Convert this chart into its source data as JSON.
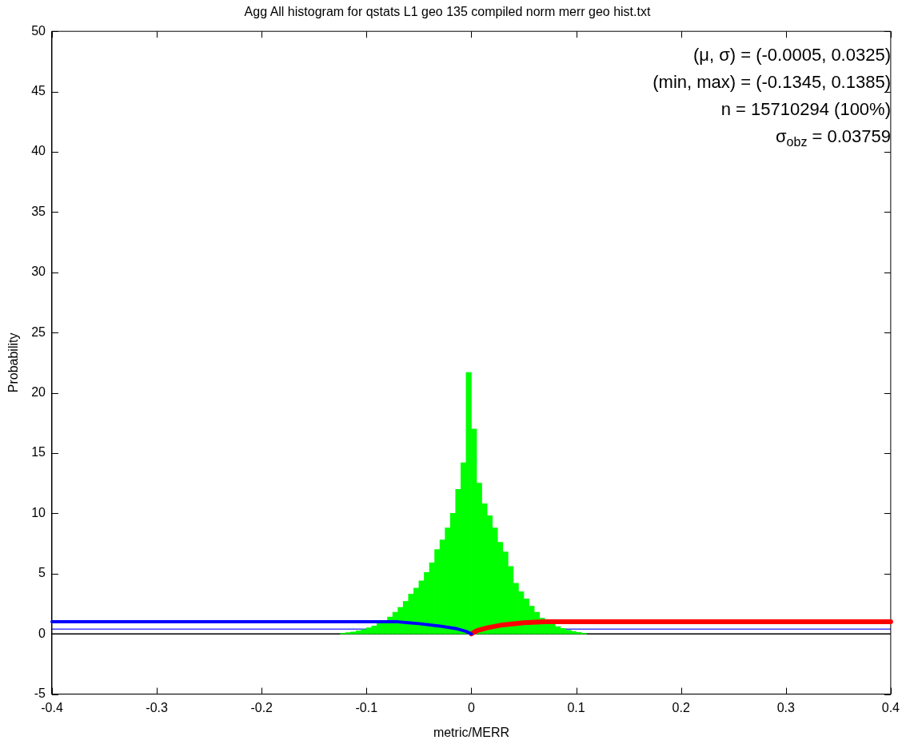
{
  "chart_data": {
    "type": "histogram",
    "title": "Agg All histogram for qstats L1 geo 135 compiled norm merr geo hist.txt",
    "xlabel": "metric/MERR",
    "ylabel": "Probability",
    "bins": [
      -0.125,
      -0.12,
      -0.115,
      -0.11,
      -0.105,
      -0.1,
      -0.095,
      -0.09,
      -0.085,
      -0.08,
      -0.075,
      -0.07,
      -0.065,
      -0.06,
      -0.055,
      -0.05,
      -0.045,
      -0.04,
      -0.035,
      -0.03,
      -0.025,
      -0.02,
      -0.015,
      -0.01,
      -0.005,
      0,
      0.005,
      0.01,
      0.015,
      0.02,
      0.025,
      0.03,
      0.035,
      0.04,
      0.045,
      0.05,
      0.055,
      0.06,
      0.065,
      0.07,
      0.075,
      0.08,
      0.085,
      0.09,
      0.095,
      0.1,
      0.105,
      0.11
    ],
    "values": [
      0.05,
      0.1,
      0.15,
      0.25,
      0.35,
      0.5,
      0.65,
      0.85,
      1.1,
      1.4,
      1.8,
      2.2,
      2.7,
      3.3,
      3.8,
      4.4,
      5.1,
      5.9,
      7.0,
      7.8,
      8.8,
      10.0,
      12.0,
      14.2,
      21.7,
      17.0,
      12.5,
      10.8,
      9.8,
      8.8,
      7.6,
      6.8,
      5.6,
      4.2,
      3.5,
      2.9,
      2.3,
      1.8,
      1.3,
      1.0,
      0.8,
      0.6,
      0.45,
      0.3,
      0.2,
      0.12,
      0.05
    ],
    "color": "#00ff00",
    "series": [
      {
        "type": "line",
        "color": "#0000ff",
        "x": [
          -0.4,
          -0.07,
          -0.05,
          -0.03,
          -0.015,
          -0.005,
          0
        ],
        "values": [
          1,
          1,
          0.85,
          0.65,
          0.45,
          0.2,
          0
        ]
      },
      {
        "type": "line",
        "color": "#ff0000",
        "x": [
          0,
          0.005,
          0.015,
          0.03,
          0.05,
          0.07,
          0.4
        ],
        "values": [
          0,
          0.25,
          0.5,
          0.75,
          0.92,
          1,
          1
        ]
      }
    ],
    "ref_lines": [
      {
        "axis": "y",
        "value": 0,
        "color": "#000000"
      },
      {
        "axis": "y",
        "value": 0.4,
        "color": "#4040ff"
      }
    ],
    "annotations": [
      "(μ, σ) = (-0.0005, 0.0325)",
      "(min, max) = (-0.1345, 0.1385)",
      "n = 15710294 (100%)",
      "σ$_{obz}$ = 0.03759"
    ],
    "xlim": [
      -0.4,
      0.4
    ],
    "xticks": [
      -0.4,
      -0.3,
      -0.2,
      -0.1,
      0,
      0.1,
      0.2,
      0.3,
      0.4
    ],
    "ylim": [
      -5,
      50
    ],
    "yticks": [
      -5,
      0,
      5,
      10,
      15,
      20,
      25,
      30,
      35,
      40,
      45,
      50
    ],
    "grid": false,
    "legend": false,
    "marker": "none"
  }
}
